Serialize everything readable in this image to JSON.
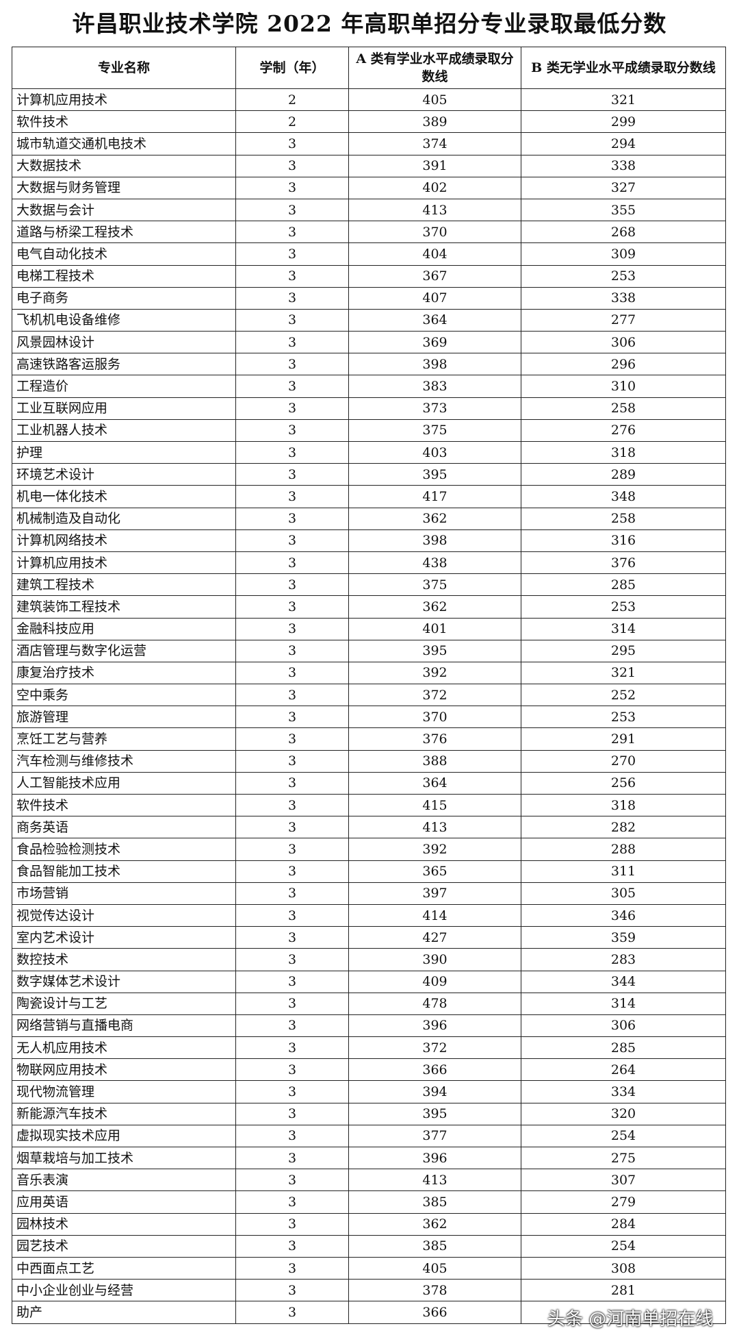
{
  "title": "许昌职业技术学院 2022 年高职单招分专业录取最低分数",
  "table": {
    "header": [
      "专业名称",
      "学制（年）",
      "A 类有学业水平成绩录取分数线",
      "B 类无学业水平成绩录取分数线"
    ],
    "rows": [
      [
        "计算机应用技术",
        2,
        405,
        321
      ],
      [
        "软件技术",
        2,
        389,
        299
      ],
      [
        "城市轨道交通机电技术",
        3,
        374,
        294
      ],
      [
        "大数据技术",
        3,
        391,
        338
      ],
      [
        "大数据与财务管理",
        3,
        402,
        327
      ],
      [
        "大数据与会计",
        3,
        413,
        355
      ],
      [
        "道路与桥梁工程技术",
        3,
        370,
        268
      ],
      [
        "电气自动化技术",
        3,
        404,
        309
      ],
      [
        "电梯工程技术",
        3,
        367,
        253
      ],
      [
        "电子商务",
        3,
        407,
        338
      ],
      [
        "飞机机电设备维修",
        3,
        364,
        277
      ],
      [
        "风景园林设计",
        3,
        369,
        306
      ],
      [
        "高速铁路客运服务",
        3,
        398,
        296
      ],
      [
        "工程造价",
        3,
        383,
        310
      ],
      [
        "工业互联网应用",
        3,
        373,
        258
      ],
      [
        "工业机器人技术",
        3,
        375,
        276
      ],
      [
        "护理",
        3,
        403,
        318
      ],
      [
        "环境艺术设计",
        3,
        395,
        289
      ],
      [
        "机电一体化技术",
        3,
        417,
        348
      ],
      [
        "机械制造及自动化",
        3,
        362,
        258
      ],
      [
        "计算机网络技术",
        3,
        398,
        316
      ],
      [
        "计算机应用技术",
        3,
        438,
        376
      ],
      [
        "建筑工程技术",
        3,
        375,
        285
      ],
      [
        "建筑装饰工程技术",
        3,
        362,
        253
      ],
      [
        "金融科技应用",
        3,
        401,
        314
      ],
      [
        "酒店管理与数字化运营",
        3,
        395,
        295
      ],
      [
        "康复治疗技术",
        3,
        392,
        321
      ],
      [
        "空中乘务",
        3,
        372,
        252
      ],
      [
        "旅游管理",
        3,
        370,
        253
      ],
      [
        "烹饪工艺与营养",
        3,
        376,
        291
      ],
      [
        "汽车检测与维修技术",
        3,
        388,
        270
      ],
      [
        "人工智能技术应用",
        3,
        364,
        256
      ],
      [
        "软件技术",
        3,
        415,
        318
      ],
      [
        "商务英语",
        3,
        413,
        282
      ],
      [
        "食品检验检测技术",
        3,
        392,
        288
      ],
      [
        "食品智能加工技术",
        3,
        365,
        311
      ],
      [
        "市场营销",
        3,
        397,
        305
      ],
      [
        "视觉传达设计",
        3,
        414,
        346
      ],
      [
        "室内艺术设计",
        3,
        427,
        359
      ],
      [
        "数控技术",
        3,
        390,
        283
      ],
      [
        "数字媒体艺术设计",
        3,
        409,
        344
      ],
      [
        "陶瓷设计与工艺",
        3,
        478,
        314
      ],
      [
        "网络营销与直播电商",
        3,
        396,
        306
      ],
      [
        "无人机应用技术",
        3,
        372,
        285
      ],
      [
        "物联网应用技术",
        3,
        366,
        264
      ],
      [
        "现代物流管理",
        3,
        394,
        334
      ],
      [
        "新能源汽车技术",
        3,
        395,
        320
      ],
      [
        "虚拟现实技术应用",
        3,
        377,
        254
      ],
      [
        "烟草栽培与加工技术",
        3,
        396,
        275
      ],
      [
        "音乐表演",
        3,
        413,
        307
      ],
      [
        "应用英语",
        3,
        385,
        279
      ],
      [
        "园林技术",
        3,
        362,
        284
      ],
      [
        "园艺技术",
        3,
        385,
        254
      ],
      [
        "中西面点工艺",
        3,
        405,
        308
      ],
      [
        "中小企业创业与经营",
        3,
        378,
        281
      ],
      [
        "助产",
        3,
        366,
        null
      ]
    ]
  },
  "watermark": "头条 @河南单招在线"
}
